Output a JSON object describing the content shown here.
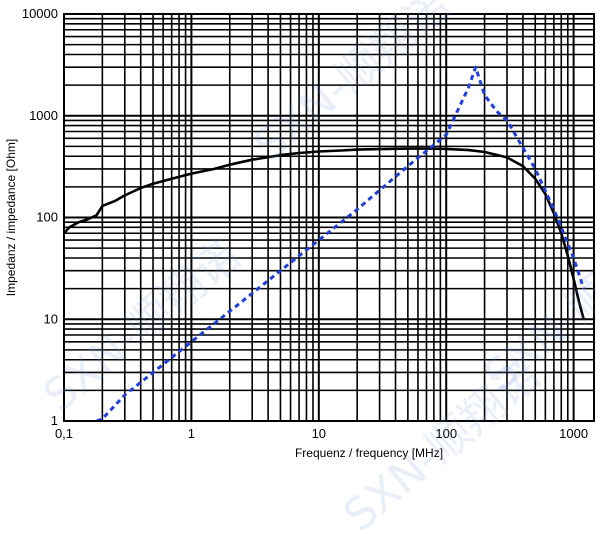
{
  "chart_data": {
    "type": "line",
    "title": "",
    "xlabel": "Frequenz / frequency [MHz]",
    "ylabel": "Impedanz / impedance [Ohm]",
    "x_scale": "log",
    "y_scale": "log",
    "xlim": [
      0.1,
      1000
    ],
    "ylim": [
      1,
      10000
    ],
    "x_ticks": [
      0.1,
      1,
      10,
      100,
      1000
    ],
    "x_tick_labels": [
      "0,1",
      "1",
      "10",
      "100",
      "1000"
    ],
    "y_ticks": [
      1,
      10,
      100,
      1000,
      10000
    ],
    "y_tick_labels": [
      "1",
      "10",
      "100",
      "1000",
      "10000"
    ],
    "grid": true,
    "legend": "none",
    "series": [
      {
        "style": "solid",
        "color": "#000000",
        "x": [
          0.1,
          0.11,
          0.13,
          0.15,
          0.18,
          0.2,
          0.25,
          0.3,
          0.4,
          0.5,
          0.7,
          1,
          1.5,
          2,
          3,
          5,
          7,
          10,
          15,
          20,
          30,
          50,
          70,
          100,
          150,
          200,
          300,
          400,
          500,
          600,
          700,
          800,
          900,
          1000,
          1100,
          1200
        ],
        "y": [
          70,
          80,
          90,
          95,
          105,
          130,
          145,
          165,
          195,
          215,
          240,
          270,
          300,
          330,
          370,
          410,
          430,
          445,
          455,
          465,
          470,
          475,
          475,
          472,
          460,
          440,
          390,
          320,
          240,
          170,
          110,
          70,
          42,
          25,
          15,
          10
        ]
      },
      {
        "style": "dotted",
        "color": "#1f3fd8",
        "x": [
          0.18,
          0.2,
          0.3,
          0.5,
          1,
          2,
          5,
          10,
          20,
          50,
          100,
          150,
          170,
          200,
          250,
          300,
          500,
          700,
          1000,
          1200
        ],
        "y": [
          1,
          1.05,
          1.8,
          3,
          6,
          12,
          30,
          60,
          120,
          320,
          650,
          1900,
          3000,
          1600,
          1100,
          900,
          300,
          120,
          40,
          20
        ]
      }
    ]
  },
  "watermark": {
    "text": "SXN-顺翔诺",
    "color": "#96a0dc"
  }
}
